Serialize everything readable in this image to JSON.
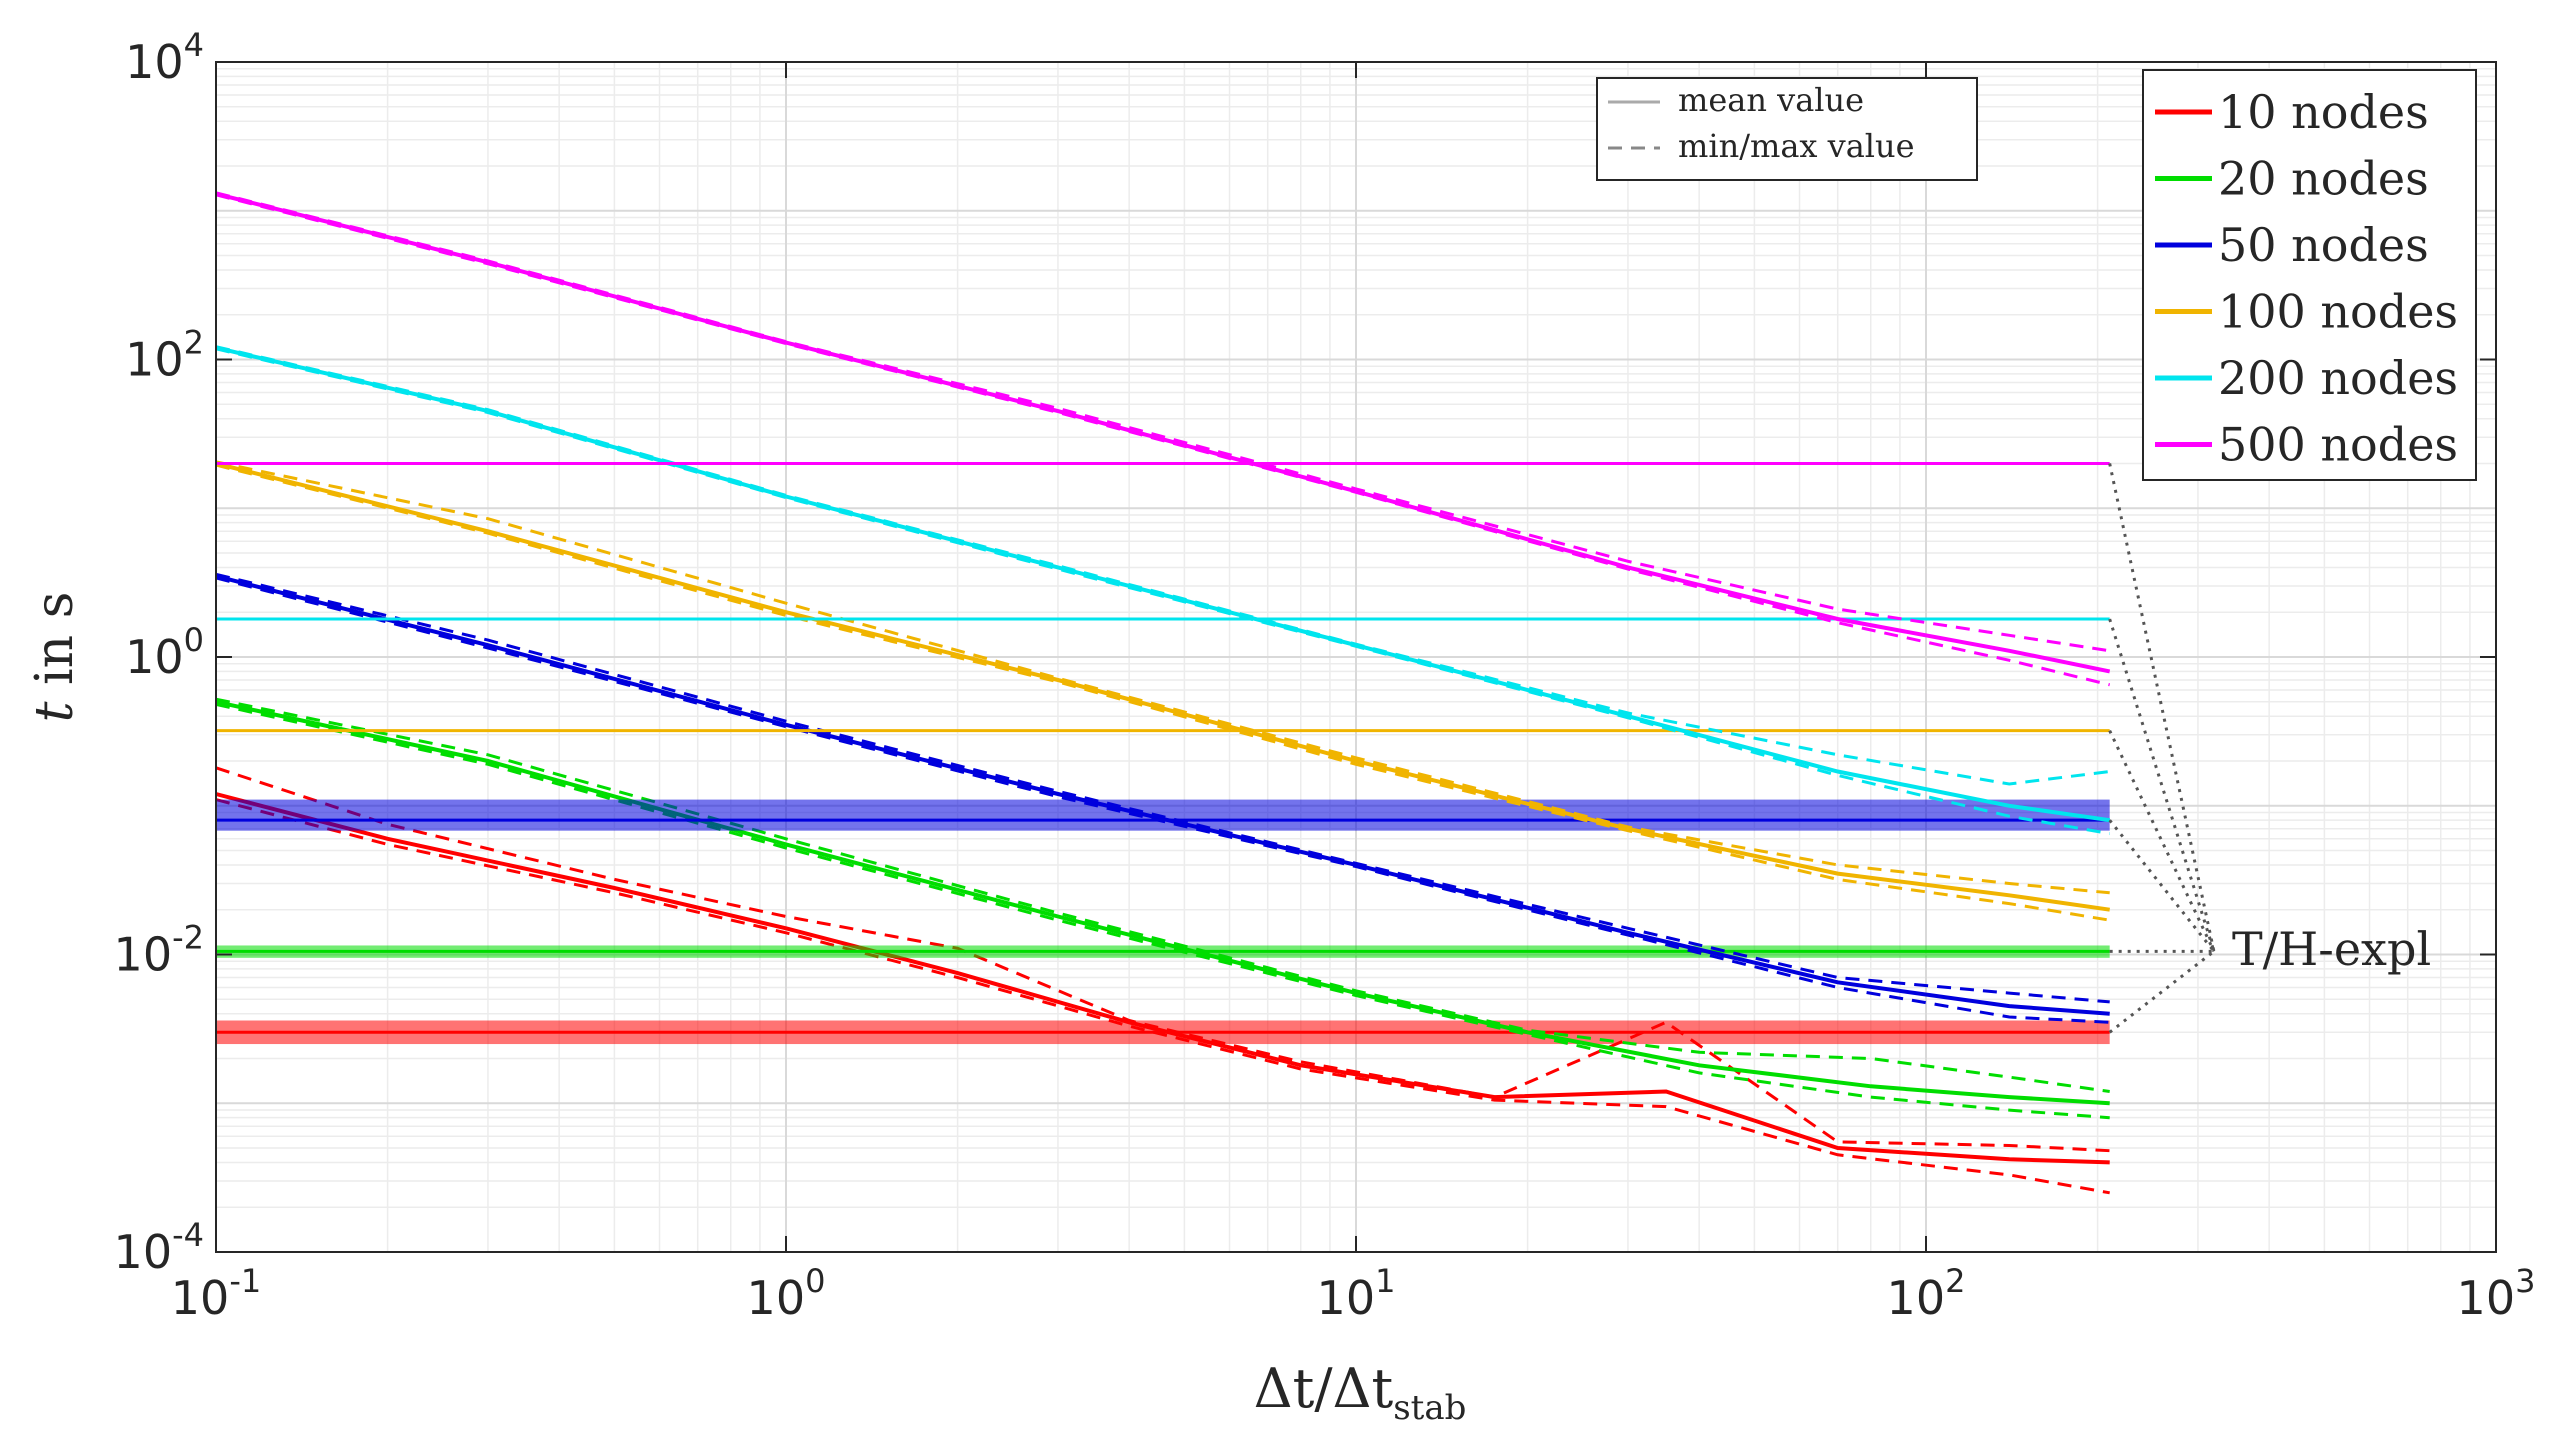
{
  "chart_data": {
    "type": "line",
    "xscale": "log",
    "yscale": "log",
    "xlim": [
      0.1,
      1000
    ],
    "ylim": [
      0.0001,
      10000
    ],
    "xlabel": {
      "main": "Δt/Δt",
      "sub": "stab"
    },
    "ylabel": {
      "italic": "t",
      "rest": " in s"
    },
    "x_ticks": [
      {
        "value": 0.1,
        "base": "10",
        "exp": "-1"
      },
      {
        "value": 1,
        "base": "10",
        "exp": "0"
      },
      {
        "value": 10,
        "base": "10",
        "exp": "1"
      },
      {
        "value": 100,
        "base": "10",
        "exp": "2"
      },
      {
        "value": 1000,
        "base": "10",
        "exp": "3"
      }
    ],
    "y_ticks": [
      {
        "value": 0.0001,
        "base": "10",
        "exp": "-4"
      },
      {
        "value": 0.01,
        "base": "10",
        "exp": "-2"
      },
      {
        "value": 1,
        "base": "10",
        "exp": "0"
      },
      {
        "value": 100,
        "base": "10",
        "exp": "2"
      },
      {
        "value": 10000,
        "base": "10",
        "exp": "4"
      }
    ],
    "style_legend": [
      {
        "label": "mean value",
        "dash": "solid"
      },
      {
        "label": "min/max value",
        "dash": "dashed"
      }
    ],
    "series": [
      {
        "name": "10 nodes",
        "color": "#ff0000",
        "x": [
          0.1,
          0.2,
          0.5,
          1,
          2,
          4,
          8,
          17.5,
          35,
          70,
          140,
          210
        ],
        "mean": [
          0.12,
          0.06,
          0.028,
          0.015,
          0.0075,
          0.0035,
          0.0018,
          0.0011,
          0.0012,
          0.0005,
          0.00042,
          0.0004
        ],
        "min": [
          0.11,
          0.055,
          0.026,
          0.014,
          0.007,
          0.0033,
          0.0017,
          0.00105,
          0.00095,
          0.00045,
          0.00033,
          0.00025
        ],
        "max": [
          0.18,
          0.075,
          0.032,
          0.018,
          0.011,
          0.0036,
          0.0019,
          0.0011,
          0.0035,
          0.00055,
          0.00052,
          0.00048
        ],
        "horizontal": 0.003,
        "band": [
          0.0025,
          0.0036
        ]
      },
      {
        "name": "20 nodes",
        "color": "#00dd00",
        "x": [
          0.1,
          0.3,
          1,
          3,
          10,
          20,
          40,
          80,
          140,
          210
        ],
        "mean": [
          0.5,
          0.2,
          0.055,
          0.018,
          0.0055,
          0.003,
          0.0018,
          0.0013,
          0.0011,
          0.001
        ],
        "min": [
          0.48,
          0.19,
          0.052,
          0.017,
          0.0053,
          0.0029,
          0.0016,
          0.0011,
          0.0009,
          0.0008
        ],
        "max": [
          0.52,
          0.22,
          0.06,
          0.019,
          0.0057,
          0.0031,
          0.0022,
          0.002,
          0.0015,
          0.0012
        ],
        "horizontal": 0.0105,
        "band": [
          0.0095,
          0.0115
        ]
      },
      {
        "name": "50 nodes",
        "color": "#0000dd",
        "x": [
          0.1,
          0.3,
          1,
          3,
          10,
          30,
          70,
          140,
          210
        ],
        "mean": [
          3.5,
          1.2,
          0.35,
          0.12,
          0.04,
          0.014,
          0.0065,
          0.0045,
          0.004
        ],
        "min": [
          3.4,
          1.15,
          0.34,
          0.115,
          0.039,
          0.0135,
          0.006,
          0.0038,
          0.0035
        ],
        "max": [
          3.6,
          1.3,
          0.37,
          0.125,
          0.041,
          0.015,
          0.007,
          0.0055,
          0.0048
        ],
        "horizontal": 0.08,
        "band": [
          0.068,
          0.11
        ]
      },
      {
        "name": "100 nodes",
        "color": "#f0b400",
        "x": [
          0.1,
          0.3,
          1,
          3,
          10,
          30,
          70,
          140,
          210
        ],
        "mean": [
          20,
          7,
          2,
          0.7,
          0.2,
          0.07,
          0.035,
          0.025,
          0.02
        ],
        "min": [
          19.5,
          6.8,
          1.9,
          0.68,
          0.19,
          0.068,
          0.032,
          0.022,
          0.017
        ],
        "max": [
          20.5,
          8.5,
          2.3,
          0.72,
          0.21,
          0.072,
          0.04,
          0.03,
          0.026
        ],
        "horizontal": 0.32
      },
      {
        "name": "200 nodes",
        "color": "#00e5ee",
        "x": [
          0.1,
          0.3,
          1,
          3,
          10,
          30,
          70,
          140,
          210
        ],
        "mean": [
          120,
          45,
          12,
          4,
          1.2,
          0.4,
          0.17,
          0.1,
          0.08
        ],
        "min": [
          118,
          44,
          11.8,
          3.9,
          1.18,
          0.39,
          0.16,
          0.085,
          0.065
        ],
        "max": [
          122,
          46,
          12.2,
          4.1,
          1.22,
          0.42,
          0.22,
          0.14,
          0.17
        ],
        "horizontal": 1.8
      },
      {
        "name": "500 nodes",
        "color": "#ff00ff",
        "x": [
          0.1,
          0.3,
          1,
          3,
          10,
          30,
          70,
          140,
          210
        ],
        "mean": [
          1300,
          450,
          130,
          45,
          13,
          4,
          1.8,
          1.1,
          0.8
        ],
        "min": [
          1280,
          440,
          128,
          44,
          12.8,
          3.9,
          1.7,
          0.95,
          0.65
        ],
        "max": [
          1320,
          460,
          132,
          47,
          13.5,
          4.4,
          2.1,
          1.4,
          1.1
        ],
        "horizontal": 20
      }
    ],
    "annotation": {
      "label": "T/H-expl",
      "anchor_x": 320,
      "anchor_y": 0.0105,
      "line_end_x": 210
    }
  }
}
